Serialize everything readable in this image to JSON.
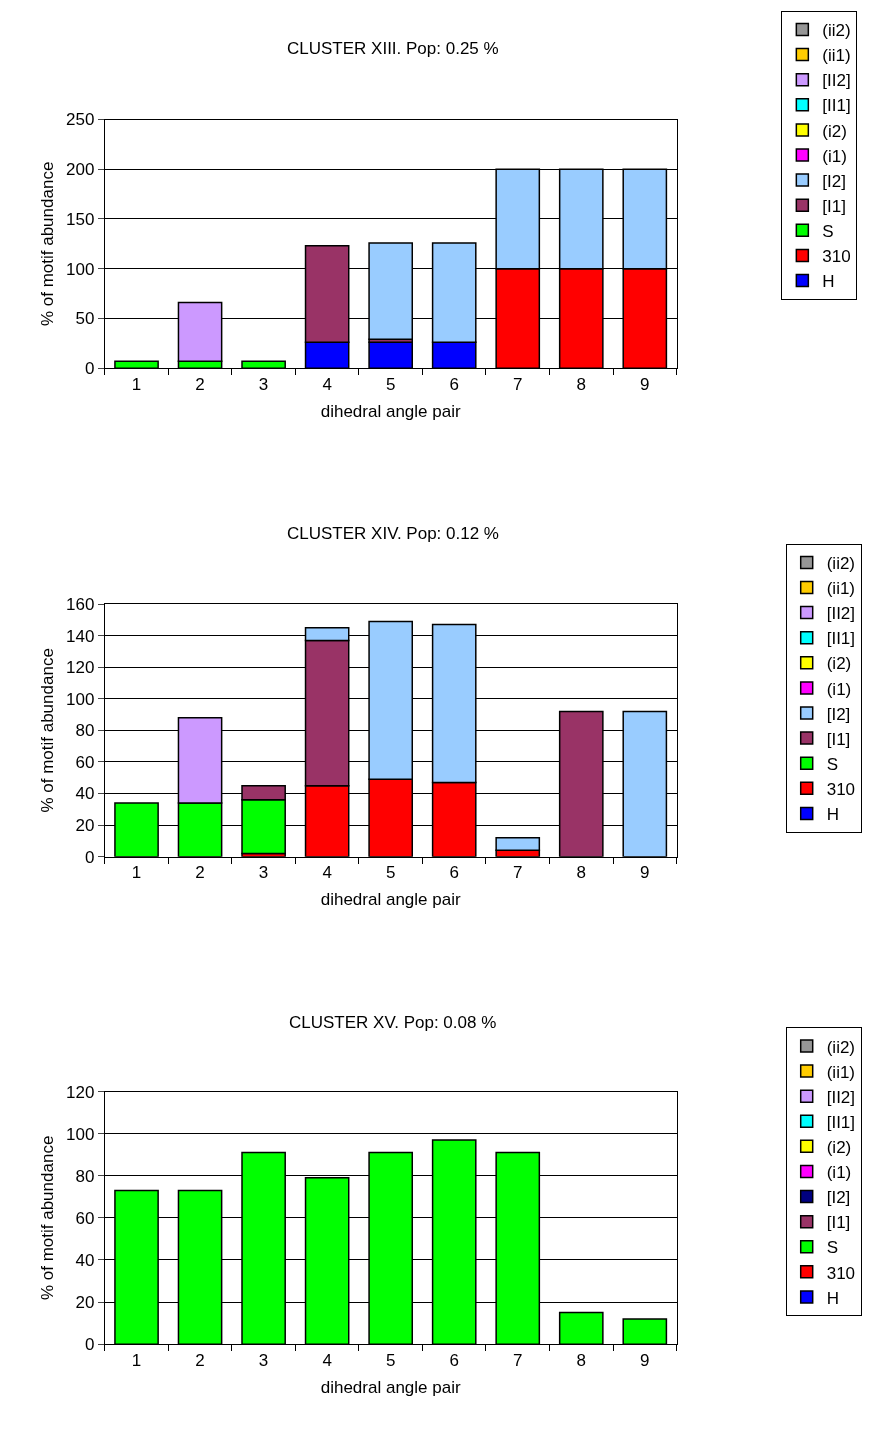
{
  "chart_data": [
    {
      "type": "bar",
      "stacked": true,
      "title": "CLUSTER XIII. Pop: 0.25 %",
      "xlabel": "dihedral angle pair",
      "ylabel": "% of motif abundance",
      "categories": [
        "1",
        "2",
        "3",
        "4",
        "5",
        "6",
        "7",
        "8",
        "9"
      ],
      "ylim": [
        0,
        250
      ],
      "yticks": [
        0,
        50,
        100,
        150,
        200,
        250
      ],
      "grid": "y",
      "legend": "right",
      "series": [
        {
          "name": "H",
          "color": "#0000ff",
          "values": [
            null,
            null,
            null,
            26,
            26,
            26,
            null,
            null,
            null
          ]
        },
        {
          "name": "310",
          "color": "#ff0000",
          "values": [
            null,
            null,
            null,
            null,
            null,
            null,
            100,
            100,
            100
          ]
        },
        {
          "name": "S",
          "color": "#00ff00",
          "values": [
            7,
            7,
            7,
            null,
            null,
            null,
            null,
            null,
            null
          ]
        },
        {
          "name": "[I1]",
          "color": "#993366",
          "values": [
            null,
            null,
            null,
            97,
            3,
            null,
            null,
            null,
            null
          ]
        },
        {
          "name": "[I2]",
          "color": "#99ccff",
          "values": [
            null,
            null,
            null,
            null,
            97,
            100,
            100,
            100,
            100
          ]
        },
        {
          "name": "(i1)",
          "color": "#ff00ff",
          "values": [
            null,
            null,
            null,
            null,
            null,
            null,
            null,
            null,
            null
          ]
        },
        {
          "name": "(i2)",
          "color": "#ffff00",
          "values": [
            null,
            null,
            null,
            null,
            null,
            null,
            null,
            null,
            null
          ]
        },
        {
          "name": "[II1]",
          "color": "#00ffff",
          "values": [
            null,
            null,
            null,
            null,
            null,
            null,
            null,
            null,
            null
          ]
        },
        {
          "name": "[II2]",
          "color": "#cc99ff",
          "values": [
            null,
            59,
            null,
            null,
            null,
            null,
            null,
            null,
            null
          ]
        },
        {
          "name": "(ii1)",
          "color": "#ffcc00",
          "values": [
            null,
            null,
            null,
            null,
            null,
            null,
            null,
            null,
            null
          ]
        },
        {
          "name": "(ii2)",
          "color": "#969696",
          "values": [
            null,
            null,
            null,
            null,
            null,
            null,
            null,
            null,
            null
          ]
        }
      ]
    },
    {
      "type": "bar",
      "stacked": true,
      "title": "CLUSTER XIV. Pop: 0.12 %",
      "xlabel": "dihedral angle pair",
      "ylabel": "% of motif abundance",
      "categories": [
        "1",
        "2",
        "3",
        "4",
        "5",
        "6",
        "7",
        "8",
        "9"
      ],
      "ylim": [
        0,
        160
      ],
      "yticks": [
        0,
        20,
        40,
        60,
        80,
        100,
        120,
        140,
        160
      ],
      "grid": "y",
      "legend": "right",
      "series": [
        {
          "name": "H",
          "color": "#0000ff",
          "values": [
            null,
            null,
            null,
            null,
            null,
            null,
            null,
            null,
            null
          ]
        },
        {
          "name": "310",
          "color": "#ff0000",
          "values": [
            null,
            null,
            2,
            45,
            49,
            47,
            4,
            null,
            null
          ]
        },
        {
          "name": "S",
          "color": "#00ff00",
          "values": [
            34,
            34,
            34,
            null,
            null,
            null,
            null,
            null,
            null
          ]
        },
        {
          "name": "[I1]",
          "color": "#993366",
          "values": [
            null,
            null,
            9,
            92,
            null,
            null,
            null,
            92,
            null
          ]
        },
        {
          "name": "[I2]",
          "color": "#99ccff",
          "values": [
            null,
            null,
            null,
            8,
            100,
            100,
            8,
            null,
            92
          ]
        },
        {
          "name": "(i1)",
          "color": "#ff00ff",
          "values": [
            null,
            null,
            null,
            null,
            null,
            null,
            null,
            null,
            null
          ]
        },
        {
          "name": "(i2)",
          "color": "#ffff00",
          "values": [
            null,
            null,
            null,
            null,
            null,
            null,
            null,
            null,
            null
          ]
        },
        {
          "name": "[II1]",
          "color": "#00ffff",
          "values": [
            null,
            null,
            null,
            null,
            null,
            null,
            null,
            null,
            null
          ]
        },
        {
          "name": "[II2]",
          "color": "#cc99ff",
          "values": [
            null,
            54,
            null,
            null,
            null,
            null,
            null,
            null,
            null
          ]
        },
        {
          "name": "(ii1)",
          "color": "#ffcc00",
          "values": [
            null,
            null,
            null,
            null,
            null,
            null,
            null,
            null,
            null
          ]
        },
        {
          "name": "(ii2)",
          "color": "#969696",
          "values": [
            null,
            null,
            null,
            null,
            null,
            null,
            null,
            null,
            null
          ]
        }
      ]
    },
    {
      "type": "bar",
      "stacked": true,
      "title": "CLUSTER XV. Pop: 0.08 %",
      "xlabel": "dihedral angle pair",
      "ylabel": "% of motif abundance",
      "categories": [
        "1",
        "2",
        "3",
        "4",
        "5",
        "6",
        "7",
        "8",
        "9"
      ],
      "ylim": [
        0,
        120
      ],
      "yticks": [
        0,
        20,
        40,
        60,
        80,
        100,
        120
      ],
      "grid": "y",
      "legend": "right",
      "series": [
        {
          "name": "H",
          "color": "#0000ff",
          "values": [
            null,
            null,
            null,
            null,
            null,
            null,
            null,
            null,
            null
          ]
        },
        {
          "name": "310",
          "color": "#ff0000",
          "values": [
            null,
            null,
            null,
            null,
            null,
            null,
            null,
            null,
            null
          ]
        },
        {
          "name": "S",
          "color": "#00ff00",
          "values": [
            73,
            73,
            91,
            79,
            91,
            97,
            91,
            15,
            12
          ]
        },
        {
          "name": "[I1]",
          "color": "#993366",
          "values": [
            null,
            null,
            null,
            null,
            null,
            null,
            null,
            null,
            null
          ]
        },
        {
          "name": "[I2]",
          "color": "#000080",
          "values": [
            null,
            null,
            null,
            null,
            null,
            null,
            null,
            null,
            null
          ]
        },
        {
          "name": "(i1)",
          "color": "#ff00ff",
          "values": [
            null,
            null,
            null,
            null,
            null,
            null,
            null,
            null,
            null
          ]
        },
        {
          "name": "(i2)",
          "color": "#ffff00",
          "values": [
            null,
            null,
            null,
            null,
            null,
            null,
            null,
            null,
            null
          ]
        },
        {
          "name": "[II1]",
          "color": "#00ffff",
          "values": [
            null,
            null,
            null,
            null,
            null,
            null,
            null,
            null,
            null
          ]
        },
        {
          "name": "[II2]",
          "color": "#cc99ff",
          "values": [
            null,
            null,
            null,
            null,
            null,
            null,
            null,
            null,
            null
          ]
        },
        {
          "name": "(ii1)",
          "color": "#ffcc00",
          "values": [
            null,
            null,
            null,
            null,
            null,
            null,
            null,
            null,
            null
          ]
        },
        {
          "name": "(ii2)",
          "color": "#969696",
          "values": [
            null,
            null,
            null,
            null,
            null,
            null,
            null,
            null,
            null
          ]
        }
      ]
    }
  ]
}
